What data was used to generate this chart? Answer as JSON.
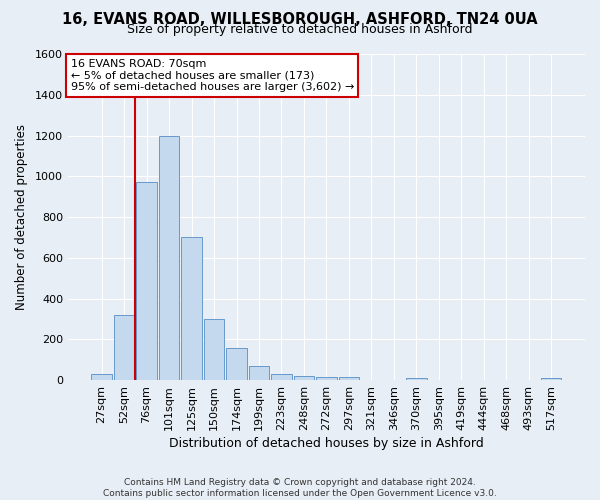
{
  "title1": "16, EVANS ROAD, WILLESBOROUGH, ASHFORD, TN24 0UA",
  "title2": "Size of property relative to detached houses in Ashford",
  "xlabel": "Distribution of detached houses by size in Ashford",
  "ylabel": "Number of detached properties",
  "footer": "Contains HM Land Registry data © Crown copyright and database right 2024.\nContains public sector information licensed under the Open Government Licence v3.0.",
  "categories": [
    "27sqm",
    "52sqm",
    "76sqm",
    "101sqm",
    "125sqm",
    "150sqm",
    "174sqm",
    "199sqm",
    "223sqm",
    "248sqm",
    "272sqm",
    "297sqm",
    "321sqm",
    "346sqm",
    "370sqm",
    "395sqm",
    "419sqm",
    "444sqm",
    "468sqm",
    "493sqm",
    "517sqm"
  ],
  "values": [
    30,
    320,
    970,
    1200,
    700,
    300,
    155,
    70,
    28,
    18,
    15,
    15,
    0,
    0,
    12,
    0,
    0,
    0,
    0,
    0,
    12
  ],
  "bar_color": "#c5d9ee",
  "bar_edge_color": "#6699cc",
  "vline_x_index": 1.5,
  "annotation_line1": "16 EVANS ROAD: 70sqm",
  "annotation_line2": "← 5% of detached houses are smaller (173)",
  "annotation_line3": "95% of semi-detached houses are larger (3,602) →",
  "ylim": [
    0,
    1600
  ],
  "yticks": [
    0,
    200,
    400,
    600,
    800,
    1000,
    1200,
    1400,
    1600
  ],
  "background_color": "#e8eef5",
  "grid_color": "#ffffff",
  "annotation_box_color": "#ffffff",
  "annotation_box_edge": "#cc0000",
  "vline_color": "#cc0000",
  "title1_fontsize": 10.5,
  "title2_fontsize": 9,
  "ylabel_fontsize": 8.5,
  "xlabel_fontsize": 9,
  "tick_fontsize": 8,
  "annotation_fontsize": 8
}
